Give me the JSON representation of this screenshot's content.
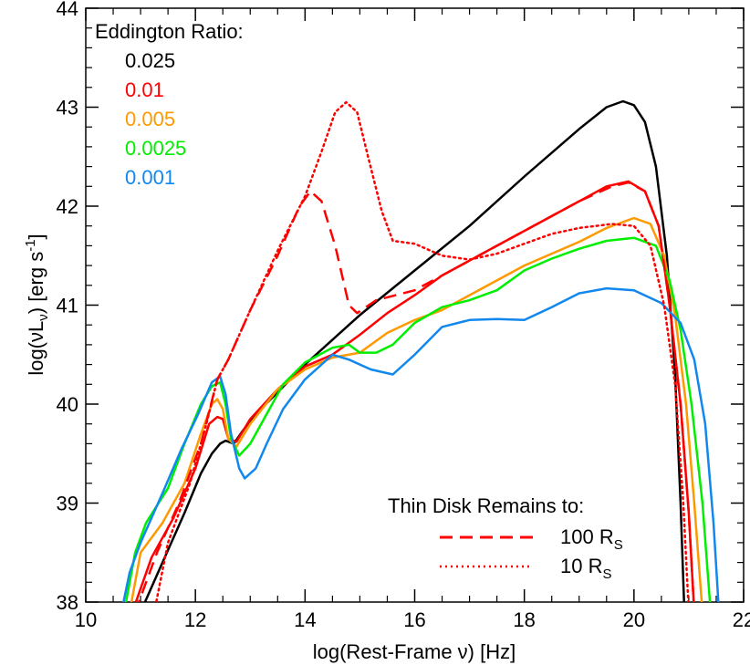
{
  "chart_data": {
    "type": "line",
    "xlabel": "log(Rest-Frame ν) [Hz]",
    "ylabel_parts": {
      "pre": "log(νL",
      "sub": "ν",
      "mid": ") [erg s",
      "sup": "-1",
      "post": "]"
    },
    "xlim": [
      10,
      22
    ],
    "ylim": [
      38,
      44
    ],
    "x_ticks": [
      10,
      12,
      14,
      16,
      18,
      20,
      22
    ],
    "x_tick_labels": [
      "10",
      "12",
      "14",
      "16",
      "18",
      "20",
      "22"
    ],
    "y_ticks": [
      38,
      39,
      40,
      41,
      42,
      43,
      44
    ],
    "y_tick_labels": [
      "38",
      "39",
      "40",
      "41",
      "42",
      "43",
      "44"
    ],
    "legend_title": "Eddington Ratio:",
    "legend_placement": "top-left",
    "series": [
      {
        "name": "0.025",
        "color": "#000000",
        "style": "solid",
        "points": [
          [
            11.0,
            37.9
          ],
          [
            11.4,
            38.4
          ],
          [
            11.8,
            38.9
          ],
          [
            12.1,
            39.3
          ],
          [
            12.3,
            39.5
          ],
          [
            12.45,
            39.6
          ],
          [
            12.55,
            39.63
          ],
          [
            12.7,
            39.6
          ],
          [
            12.85,
            39.72
          ],
          [
            13.1,
            39.9
          ],
          [
            13.5,
            40.12
          ],
          [
            14.0,
            40.4
          ],
          [
            15.0,
            40.9
          ],
          [
            16.0,
            41.35
          ],
          [
            17.0,
            41.8
          ],
          [
            18.0,
            42.3
          ],
          [
            19.0,
            42.78
          ],
          [
            19.5,
            43.0
          ],
          [
            19.8,
            43.06
          ],
          [
            20.0,
            43.02
          ],
          [
            20.2,
            42.85
          ],
          [
            20.4,
            42.4
          ],
          [
            20.6,
            41.5
          ],
          [
            20.75,
            40.3
          ],
          [
            20.85,
            39.0
          ],
          [
            20.92,
            37.9
          ]
        ]
      },
      {
        "name": "0.01",
        "color": "#ff0000",
        "style": "solid",
        "points": [
          [
            10.85,
            37.9
          ],
          [
            11.2,
            38.45
          ],
          [
            11.6,
            38.85
          ],
          [
            12.0,
            39.35
          ],
          [
            12.25,
            39.8
          ],
          [
            12.4,
            39.87
          ],
          [
            12.5,
            39.85
          ],
          [
            12.6,
            39.65
          ],
          [
            12.75,
            39.62
          ],
          [
            13.0,
            39.85
          ],
          [
            13.5,
            40.15
          ],
          [
            14.0,
            40.38
          ],
          [
            14.5,
            40.5
          ],
          [
            15.0,
            40.7
          ],
          [
            15.5,
            40.92
          ],
          [
            16.0,
            41.1
          ],
          [
            16.5,
            41.3
          ],
          [
            17.0,
            41.45
          ],
          [
            17.5,
            41.6
          ],
          [
            18.0,
            41.75
          ],
          [
            18.5,
            41.9
          ],
          [
            19.0,
            42.05
          ],
          [
            19.5,
            42.2
          ],
          [
            19.9,
            42.25
          ],
          [
            20.2,
            42.15
          ],
          [
            20.45,
            41.8
          ],
          [
            20.65,
            41.0
          ],
          [
            20.85,
            40.0
          ],
          [
            21.0,
            38.9
          ],
          [
            21.1,
            37.9
          ]
        ]
      },
      {
        "name": "0.005",
        "color": "#ff9900",
        "style": "solid",
        "points": [
          [
            10.8,
            37.9
          ],
          [
            11.0,
            38.5
          ],
          [
            11.4,
            38.8
          ],
          [
            11.8,
            39.2
          ],
          [
            12.1,
            39.7
          ],
          [
            12.3,
            40.0
          ],
          [
            12.4,
            40.05
          ],
          [
            12.5,
            39.95
          ],
          [
            12.6,
            39.65
          ],
          [
            12.75,
            39.57
          ],
          [
            13.0,
            39.8
          ],
          [
            13.5,
            40.15
          ],
          [
            14.0,
            40.35
          ],
          [
            14.5,
            40.47
          ],
          [
            15.0,
            40.52
          ],
          [
            15.5,
            40.72
          ],
          [
            16.0,
            40.85
          ],
          [
            16.5,
            40.95
          ],
          [
            17.0,
            41.1
          ],
          [
            17.5,
            41.25
          ],
          [
            18.0,
            41.4
          ],
          [
            18.5,
            41.52
          ],
          [
            19.0,
            41.64
          ],
          [
            19.5,
            41.78
          ],
          [
            20.0,
            41.88
          ],
          [
            20.3,
            41.82
          ],
          [
            20.55,
            41.5
          ],
          [
            20.75,
            40.9
          ],
          [
            20.95,
            40.0
          ],
          [
            21.1,
            39.0
          ],
          [
            21.25,
            37.9
          ]
        ]
      },
      {
        "name": "0.0025",
        "color": "#00ee00",
        "style": "solid",
        "points": [
          [
            10.7,
            37.9
          ],
          [
            10.9,
            38.5
          ],
          [
            11.1,
            38.8
          ],
          [
            11.5,
            39.15
          ],
          [
            11.8,
            39.6
          ],
          [
            12.1,
            40.0
          ],
          [
            12.3,
            40.18
          ],
          [
            12.45,
            40.22
          ],
          [
            12.55,
            40.0
          ],
          [
            12.65,
            39.65
          ],
          [
            12.8,
            39.48
          ],
          [
            13.0,
            39.6
          ],
          [
            13.3,
            39.9
          ],
          [
            13.6,
            40.2
          ],
          [
            14.0,
            40.42
          ],
          [
            14.5,
            40.57
          ],
          [
            14.8,
            40.6
          ],
          [
            15.0,
            40.52
          ],
          [
            15.3,
            40.52
          ],
          [
            15.6,
            40.6
          ],
          [
            16.0,
            40.82
          ],
          [
            16.5,
            40.98
          ],
          [
            17.0,
            41.05
          ],
          [
            17.5,
            41.15
          ],
          [
            18.0,
            41.35
          ],
          [
            18.5,
            41.47
          ],
          [
            19.0,
            41.57
          ],
          [
            19.5,
            41.65
          ],
          [
            20.0,
            41.68
          ],
          [
            20.4,
            41.6
          ],
          [
            20.65,
            41.25
          ],
          [
            20.85,
            40.75
          ],
          [
            21.05,
            40.0
          ],
          [
            21.25,
            39.0
          ],
          [
            21.4,
            37.9
          ]
        ]
      },
      {
        "name": "0.001",
        "color": "#1188ee",
        "style": "solid",
        "points": [
          [
            10.65,
            37.9
          ],
          [
            10.8,
            38.3
          ],
          [
            11.0,
            38.6
          ],
          [
            11.4,
            39.1
          ],
          [
            11.75,
            39.55
          ],
          [
            12.05,
            39.9
          ],
          [
            12.3,
            40.22
          ],
          [
            12.45,
            40.28
          ],
          [
            12.55,
            40.1
          ],
          [
            12.65,
            39.7
          ],
          [
            12.8,
            39.35
          ],
          [
            12.9,
            39.25
          ],
          [
            13.1,
            39.35
          ],
          [
            13.3,
            39.6
          ],
          [
            13.6,
            39.95
          ],
          [
            14.0,
            40.25
          ],
          [
            14.5,
            40.5
          ],
          [
            14.8,
            40.45
          ],
          [
            15.2,
            40.35
          ],
          [
            15.6,
            40.3
          ],
          [
            16.0,
            40.5
          ],
          [
            16.5,
            40.78
          ],
          [
            17.0,
            40.85
          ],
          [
            17.5,
            40.86
          ],
          [
            18.0,
            40.85
          ],
          [
            18.5,
            40.98
          ],
          [
            19.0,
            41.12
          ],
          [
            19.5,
            41.17
          ],
          [
            20.0,
            41.15
          ],
          [
            20.5,
            41.02
          ],
          [
            20.85,
            40.82
          ],
          [
            21.1,
            40.45
          ],
          [
            21.3,
            39.8
          ],
          [
            21.45,
            38.8
          ],
          [
            21.55,
            37.9
          ]
        ]
      },
      {
        "name": "100 R",
        "name_sub": "S",
        "color": "#ff0000",
        "style": "dashed",
        "points": [
          [
            10.9,
            37.9
          ],
          [
            11.3,
            38.5
          ],
          [
            11.7,
            39.0
          ],
          [
            12.1,
            39.6
          ],
          [
            12.4,
            40.25
          ],
          [
            12.6,
            40.45
          ],
          [
            13.0,
            40.95
          ],
          [
            13.5,
            41.5
          ],
          [
            13.9,
            42.0
          ],
          [
            14.1,
            42.15
          ],
          [
            14.3,
            42.05
          ],
          [
            14.55,
            41.6
          ],
          [
            14.8,
            41.0
          ],
          [
            14.95,
            40.92
          ],
          [
            15.3,
            41.05
          ],
          [
            16.0,
            41.15
          ],
          [
            17.0,
            41.45
          ],
          [
            18.0,
            41.75
          ],
          [
            19.0,
            42.05
          ],
          [
            19.6,
            42.2
          ],
          [
            19.9,
            42.24
          ],
          [
            20.2,
            42.15
          ],
          [
            20.45,
            41.8
          ],
          [
            20.65,
            41.0
          ],
          [
            20.85,
            40.0
          ],
          [
            21.0,
            38.9
          ],
          [
            21.1,
            37.9
          ]
        ]
      },
      {
        "name": "10 R",
        "name_sub": "S",
        "color": "#ff0000",
        "style": "dotted",
        "points": [
          [
            11.25,
            37.9
          ],
          [
            11.5,
            38.6
          ],
          [
            11.9,
            39.2
          ],
          [
            12.2,
            39.8
          ],
          [
            12.4,
            40.25
          ],
          [
            12.6,
            40.45
          ],
          [
            13.0,
            40.95
          ],
          [
            13.5,
            41.55
          ],
          [
            14.0,
            42.1
          ],
          [
            14.3,
            42.55
          ],
          [
            14.55,
            42.95
          ],
          [
            14.75,
            43.05
          ],
          [
            14.95,
            42.95
          ],
          [
            15.15,
            42.5
          ],
          [
            15.4,
            41.95
          ],
          [
            15.6,
            41.65
          ],
          [
            16.0,
            41.62
          ],
          [
            16.5,
            41.5
          ],
          [
            17.0,
            41.46
          ],
          [
            17.5,
            41.52
          ],
          [
            18.0,
            41.62
          ],
          [
            18.5,
            41.72
          ],
          [
            19.0,
            41.78
          ],
          [
            19.6,
            41.82
          ],
          [
            20.0,
            41.8
          ],
          [
            20.3,
            41.6
          ],
          [
            20.55,
            41.0
          ],
          [
            20.75,
            40.2
          ],
          [
            20.9,
            39.0
          ],
          [
            21.0,
            37.9
          ]
        ]
      }
    ],
    "annotation": {
      "title": "Thin Disk Remains to:"
    }
  }
}
